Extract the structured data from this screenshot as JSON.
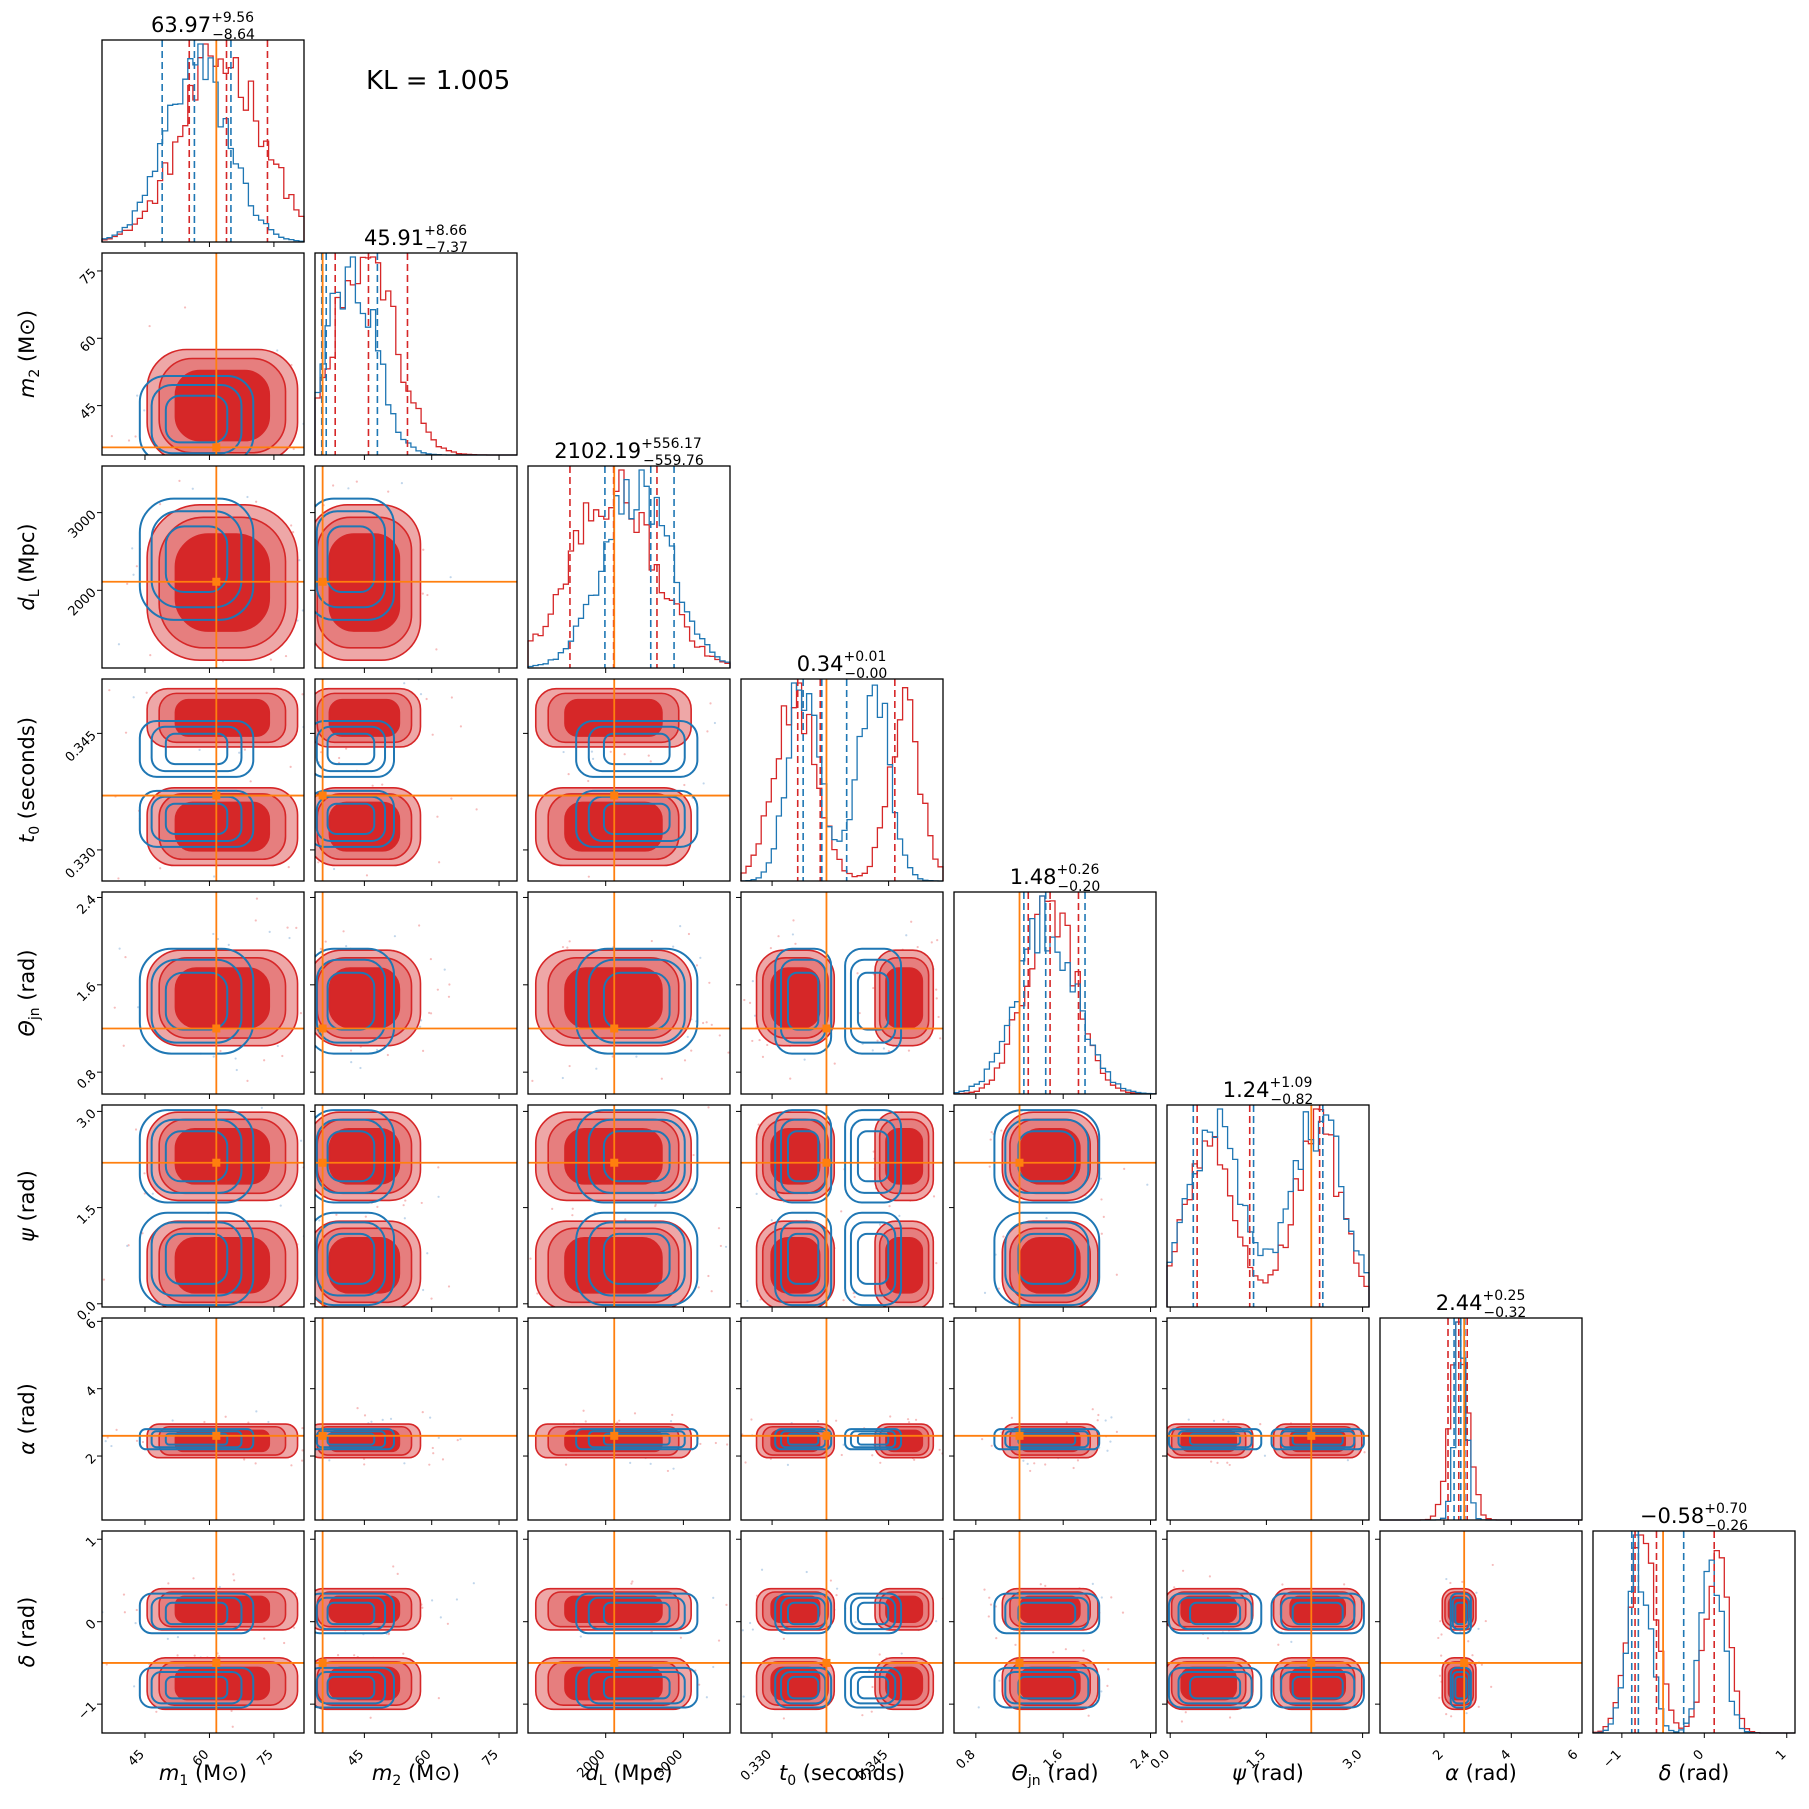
{
  "annotation": {
    "kl_label": "KL = 1.005"
  },
  "chart_data": {
    "type": "corner",
    "parameters": [
      {
        "key": "m1",
        "label_sym": "m",
        "label_sub": "1",
        "label_unit": "(M⊙)",
        "label_full": "m1 (M⊙)",
        "range": [
          35,
          82
        ],
        "ticks": [
          45,
          60,
          75
        ],
        "injection": 61.6,
        "title_main": "63.97",
        "title_plus": "+9.56",
        "title_minus": "−8.64",
        "red_quantiles": [
          55.3,
          63.97,
          73.5
        ],
        "blue_quantiles": [
          49.0,
          56.5,
          65.0
        ]
      },
      {
        "key": "m2",
        "label_sym": "m",
        "label_sub": "2",
        "label_unit": "(M⊙)",
        "label_full": "m2 (M⊙)",
        "range": [
          34,
          79
        ],
        "ticks": [
          45,
          60,
          75
        ],
        "injection": 35.7,
        "title_main": "45.91",
        "title_plus": "+8.66",
        "title_minus": "−7.37",
        "red_quantiles": [
          38.5,
          45.91,
          54.6
        ],
        "blue_quantiles": [
          35.5,
          36.5,
          47.9
        ]
      },
      {
        "key": "dL",
        "label_sym": "d",
        "label_sub": "L",
        "label_unit": "(Mpc)",
        "label_full": "dL (Mpc)",
        "range": [
          1000,
          3600
        ],
        "ticks": [
          2000,
          3000
        ],
        "injection": 2110,
        "title_main": "2102.19",
        "title_plus": "+556.17",
        "title_minus": "−559.76",
        "red_quantiles": [
          1540,
          2102.19,
          2660
        ],
        "blue_quantiles": [
          1990,
          2580,
          2880
        ]
      },
      {
        "key": "t0",
        "label_sym": "t",
        "label_sub": "0",
        "label_unit": "(seconds)",
        "label_full": "t0 (seconds)",
        "range": [
          0.326,
          0.352
        ],
        "ticks": [
          0.33,
          0.345
        ],
        "tick_labels": [
          "0.330",
          "0.345"
        ],
        "injection": 0.337,
        "title_main": "0.34",
        "title_plus": "+0.01",
        "title_minus": "−0.00",
        "red_quantiles": [
          0.3333,
          0.3362,
          0.3458
        ],
        "blue_quantiles": [
          0.334,
          0.3364,
          0.3396
        ]
      },
      {
        "key": "theta",
        "label_sym": "Θ",
        "label_sub": "jn",
        "label_unit": "(rad)",
        "label_full": "Θjn (rad)",
        "range": [
          0.6,
          2.45
        ],
        "ticks": [
          0.8,
          1.6,
          2.4
        ],
        "injection": 1.2,
        "title_main": "1.48",
        "title_plus": "+0.26",
        "title_minus": "−0.20",
        "red_quantiles": [
          1.28,
          1.48,
          1.74
        ],
        "blue_quantiles": [
          1.24,
          1.44,
          1.8
        ]
      },
      {
        "key": "psi",
        "label_sym": "ψ",
        "label_sub": "",
        "label_unit": "(rad)",
        "label_full": "ψ (rad)",
        "range": [
          -0.05,
          3.1
        ],
        "ticks": [
          0.0,
          1.5,
          3.0
        ],
        "tick_labels": [
          "0.0",
          "1.5",
          "3.0"
        ],
        "injection": 2.2,
        "title_main": "1.24",
        "title_plus": "+1.09",
        "title_minus": "−0.82",
        "red_quantiles": [
          0.42,
          1.24,
          2.33
        ],
        "blue_quantiles": [
          0.36,
          1.3,
          2.38
        ]
      },
      {
        "key": "alpha",
        "label_sym": "α",
        "label_sub": "",
        "label_unit": "(rad)",
        "label_full": "α (rad)",
        "range": [
          0.1,
          6.1
        ],
        "ticks": [
          2,
          4,
          6
        ],
        "injection": 2.6,
        "title_main": "2.44",
        "title_plus": "+0.25",
        "title_minus": "−0.32",
        "red_quantiles": [
          2.12,
          2.44,
          2.69
        ],
        "blue_quantiles": [
          2.3,
          2.5,
          2.62
        ]
      },
      {
        "key": "delta",
        "label_sym": "δ",
        "label_sub": "",
        "label_unit": "(rad)",
        "label_full": "δ (rad)",
        "range": [
          -1.35,
          1.1
        ],
        "ticks": [
          -1,
          0,
          1
        ],
        "tick_labels": [
          "−1",
          "0",
          "1"
        ],
        "injection": -0.5,
        "title_main": "−0.58",
        "title_plus": "+0.70",
        "title_minus": "−0.26",
        "red_quantiles": [
          -0.84,
          -0.58,
          0.12
        ],
        "blue_quantiles": [
          -0.88,
          -0.8,
          -0.25
        ]
      }
    ],
    "series": [
      {
        "name": "",
        "color": "#d62728"
      },
      {
        "name": "",
        "color": "#1f77b4"
      }
    ],
    "injection_color": "#ff7f0e",
    "grid": false,
    "legend": "none"
  }
}
